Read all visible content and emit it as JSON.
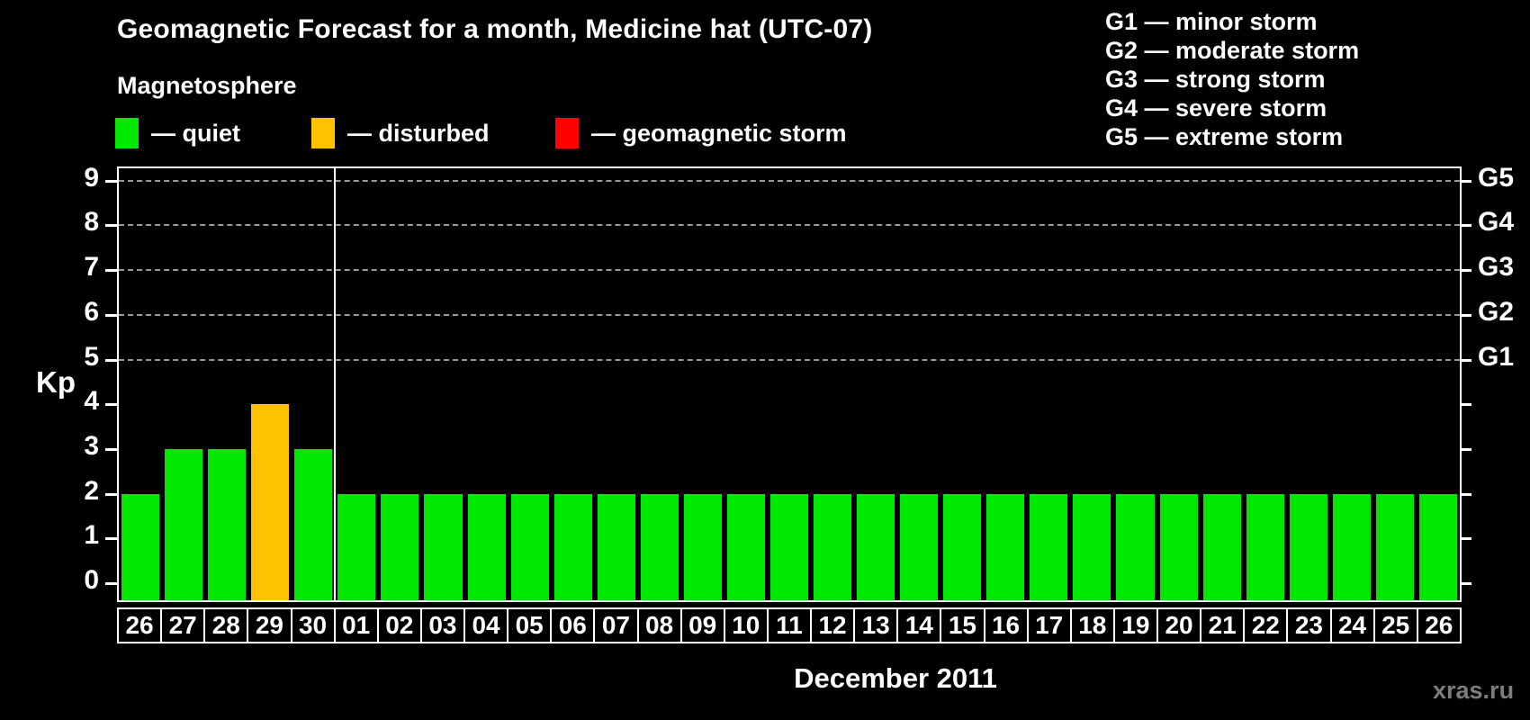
{
  "header": {
    "title": "Geomagnetic Forecast for a month, Medicine hat (UTC-07)",
    "subtitle": "Magnetosphere"
  },
  "legend": {
    "items": [
      {
        "name": "quiet",
        "label": "— quiet",
        "color": "#00e800"
      },
      {
        "name": "disturbed",
        "label": "— disturbed",
        "color": "#ffc200"
      },
      {
        "name": "storm",
        "label": "— geomagnetic storm",
        "color": "#ff0000"
      }
    ]
  },
  "storm_scale": {
    "items": [
      "G1 — minor storm",
      "G2 — moderate storm",
      "G3 — strong storm",
      "G4 — severe storm",
      "G5 — extreme storm"
    ]
  },
  "watermark": "xras.ru",
  "chart_data": {
    "type": "bar",
    "title": "Geomagnetic Forecast for a month, Medicine hat (UTC-07)",
    "xlabel": "December 2011",
    "ylabel": "Kp",
    "ylim": [
      0,
      9
    ],
    "y_ticks": [
      0,
      1,
      2,
      3,
      4,
      5,
      6,
      7,
      8,
      9
    ],
    "grid": "horizontal dashed lines at Kp 5–9 only",
    "gridlines_at": [
      5,
      6,
      7,
      8,
      9
    ],
    "right_axis": {
      "labels": [
        "G1",
        "G2",
        "G3",
        "G4",
        "G5"
      ],
      "at_kp": [
        5,
        6,
        7,
        8,
        9
      ]
    },
    "categories": [
      "26",
      "27",
      "28",
      "29",
      "30",
      "01",
      "02",
      "03",
      "04",
      "05",
      "06",
      "07",
      "08",
      "09",
      "10",
      "11",
      "12",
      "13",
      "14",
      "15",
      "16",
      "17",
      "18",
      "19",
      "20",
      "21",
      "22",
      "23",
      "24",
      "25",
      "26"
    ],
    "values": [
      2,
      3,
      3,
      4,
      3,
      2,
      2,
      2,
      2,
      2,
      2,
      2,
      2,
      2,
      2,
      2,
      2,
      2,
      2,
      2,
      2,
      2,
      2,
      2,
      2,
      2,
      2,
      2,
      2,
      2,
      2
    ],
    "states": [
      "quiet",
      "quiet",
      "quiet",
      "disturbed",
      "quiet",
      "quiet",
      "quiet",
      "quiet",
      "quiet",
      "quiet",
      "quiet",
      "quiet",
      "quiet",
      "quiet",
      "quiet",
      "quiet",
      "quiet",
      "quiet",
      "quiet",
      "quiet",
      "quiet",
      "quiet",
      "quiet",
      "quiet",
      "quiet",
      "quiet",
      "quiet",
      "quiet",
      "quiet",
      "quiet",
      "quiet"
    ],
    "state_colors": {
      "quiet": "#00e800",
      "disturbed": "#ffc200",
      "storm": "#ff0000"
    },
    "month_boundary_after_index": 4,
    "legend_position": "top-left"
  }
}
